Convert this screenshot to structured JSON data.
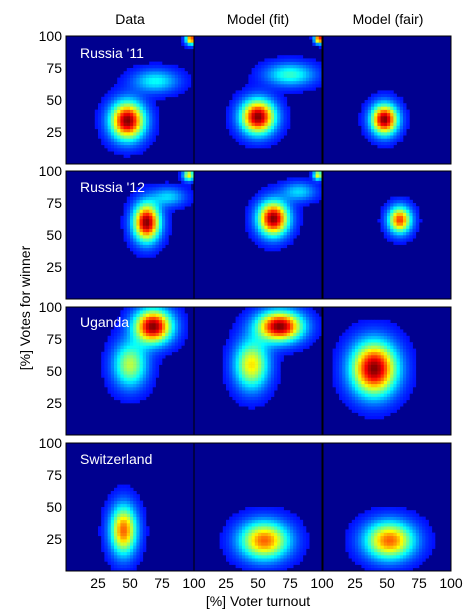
{
  "chart_data": {
    "type": "heatmap",
    "column_titles": [
      "Data",
      "Model (fit)",
      "Model (fair)"
    ],
    "row_labels": [
      "Russia '11",
      "Russia '12",
      "Uganda",
      "Switzerland"
    ],
    "xlabel": "[%] Voter turnout",
    "ylabel": "[%] Votes for winner",
    "xlim": [
      0,
      100
    ],
    "ylim": [
      0,
      100
    ],
    "xticks": [
      "25",
      "50",
      "75",
      "100"
    ],
    "yticks": [
      "25",
      "50",
      "75",
      "100"
    ],
    "colormap": "jet",
    "background_color": "#00008f",
    "panels": [
      [
        {
          "blobs": [
            {
              "x": 48,
              "y": 34,
              "sx": 9,
              "sy": 10,
              "w": 1.0
            },
            {
              "x": 70,
              "y": 65,
              "sx": 12,
              "sy": 6,
              "w": 0.3
            },
            {
              "x": 98,
              "y": 98,
              "sx": 3,
              "sy": 3,
              "w": 0.8
            }
          ]
        },
        {
          "blobs": [
            {
              "x": 50,
              "y": 37,
              "sx": 9,
              "sy": 9,
              "w": 1.0
            },
            {
              "x": 75,
              "y": 70,
              "sx": 13,
              "sy": 6,
              "w": 0.35
            },
            {
              "x": 98,
              "y": 98,
              "sx": 2.5,
              "sy": 2.5,
              "w": 0.9
            }
          ]
        },
        {
          "blobs": [
            {
              "x": 48,
              "y": 35,
              "sx": 7,
              "sy": 8,
              "w": 1.0
            }
          ]
        }
      ],
      [
        {
          "blobs": [
            {
              "x": 63,
              "y": 60,
              "sx": 7,
              "sy": 10,
              "w": 1.0
            },
            {
              "x": 80,
              "y": 80,
              "sx": 9,
              "sy": 5,
              "w": 0.25
            },
            {
              "x": 96,
              "y": 97,
              "sx": 3,
              "sy": 3,
              "w": 0.6
            }
          ]
        },
        {
          "blobs": [
            {
              "x": 62,
              "y": 63,
              "sx": 8,
              "sy": 9,
              "w": 1.0
            },
            {
              "x": 82,
              "y": 84,
              "sx": 9,
              "sy": 5,
              "w": 0.25
            },
            {
              "x": 97,
              "y": 97,
              "sx": 2.5,
              "sy": 2.5,
              "w": 0.6
            }
          ]
        },
        {
          "blobs": [
            {
              "x": 60,
              "y": 62,
              "sx": 6,
              "sy": 7,
              "w": 0.8
            }
          ]
        }
      ],
      [
        {
          "blobs": [
            {
              "x": 68,
              "y": 85,
              "sx": 10,
              "sy": 9,
              "w": 1.0
            },
            {
              "x": 50,
              "y": 55,
              "sx": 9,
              "sy": 12,
              "w": 0.5
            }
          ]
        },
        {
          "blobs": [
            {
              "x": 67,
              "y": 85,
              "sx": 12,
              "sy": 8,
              "w": 1.0
            },
            {
              "x": 45,
              "y": 55,
              "sx": 9,
              "sy": 13,
              "w": 0.6
            }
          ]
        },
        {
          "blobs": [
            {
              "x": 40,
              "y": 52,
              "sx": 12,
              "sy": 14,
              "w": 1.0
            }
          ]
        }
      ],
      [
        {
          "blobs": [
            {
              "x": 45,
              "y": 32,
              "sx": 7,
              "sy": 13,
              "w": 0.75
            }
          ]
        },
        {
          "blobs": [
            {
              "x": 55,
              "y": 24,
              "sx": 13,
              "sy": 10,
              "w": 0.75
            }
          ]
        },
        {
          "blobs": [
            {
              "x": 52,
              "y": 24,
              "sx": 13,
              "sy": 10,
              "w": 0.75
            }
          ]
        }
      ]
    ]
  }
}
